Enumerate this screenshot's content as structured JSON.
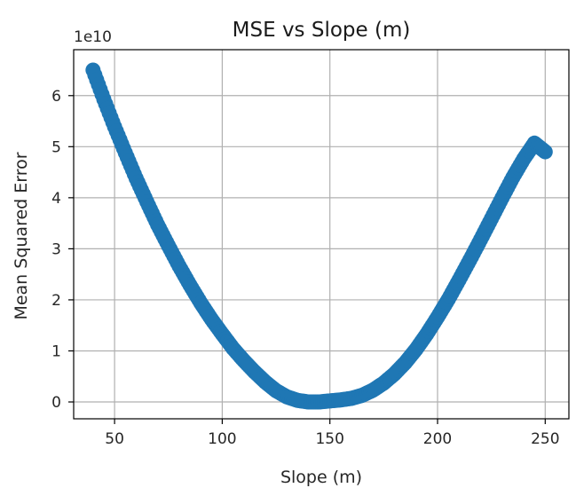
{
  "chart_data": {
    "type": "scatter",
    "title": "MSE vs Slope (m)",
    "xlabel": "Slope (m)",
    "ylabel": "Mean Squared Error",
    "y_offset_label": "1e10",
    "xlim": [
      31,
      261
    ],
    "ylim": [
      -0.33,
      6.9
    ],
    "x_ticks": [
      50,
      100,
      150,
      200,
      250
    ],
    "y_ticks": [
      0,
      1,
      2,
      3,
      4,
      5,
      6
    ],
    "x_tick_labels": [
      "50",
      "100",
      "150",
      "200",
      "250"
    ],
    "y_tick_labels": [
      "0",
      "1",
      "2",
      "3",
      "4",
      "5",
      "6"
    ],
    "grid": true,
    "marker_color": "#1f77b4",
    "series": [
      {
        "x": [
          40,
          45,
          50,
          55,
          60,
          65,
          70,
          75,
          80,
          85,
          90,
          95,
          100,
          105,
          110,
          115,
          120,
          125,
          130,
          135,
          140,
          145,
          150,
          155,
          160,
          165,
          170,
          175,
          180,
          185,
          190,
          195,
          200,
          205,
          210,
          215,
          220,
          225,
          230,
          235,
          240,
          245,
          250
        ],
        "y": [
          6.5,
          5.93,
          5.39,
          4.88,
          4.38,
          3.92,
          3.47,
          3.06,
          2.66,
          2.29,
          1.94,
          1.62,
          1.33,
          1.05,
          0.81,
          0.59,
          0.39,
          0.22,
          0.1,
          0.03,
          0.0,
          0.0,
          0.02,
          0.04,
          0.07,
          0.13,
          0.23,
          0.37,
          0.55,
          0.77,
          1.03,
          1.33,
          1.66,
          2.01,
          2.39,
          2.78,
          3.18,
          3.59,
          4.0,
          4.4,
          4.76,
          5.07,
          4.9
        ]
      }
    ]
  }
}
